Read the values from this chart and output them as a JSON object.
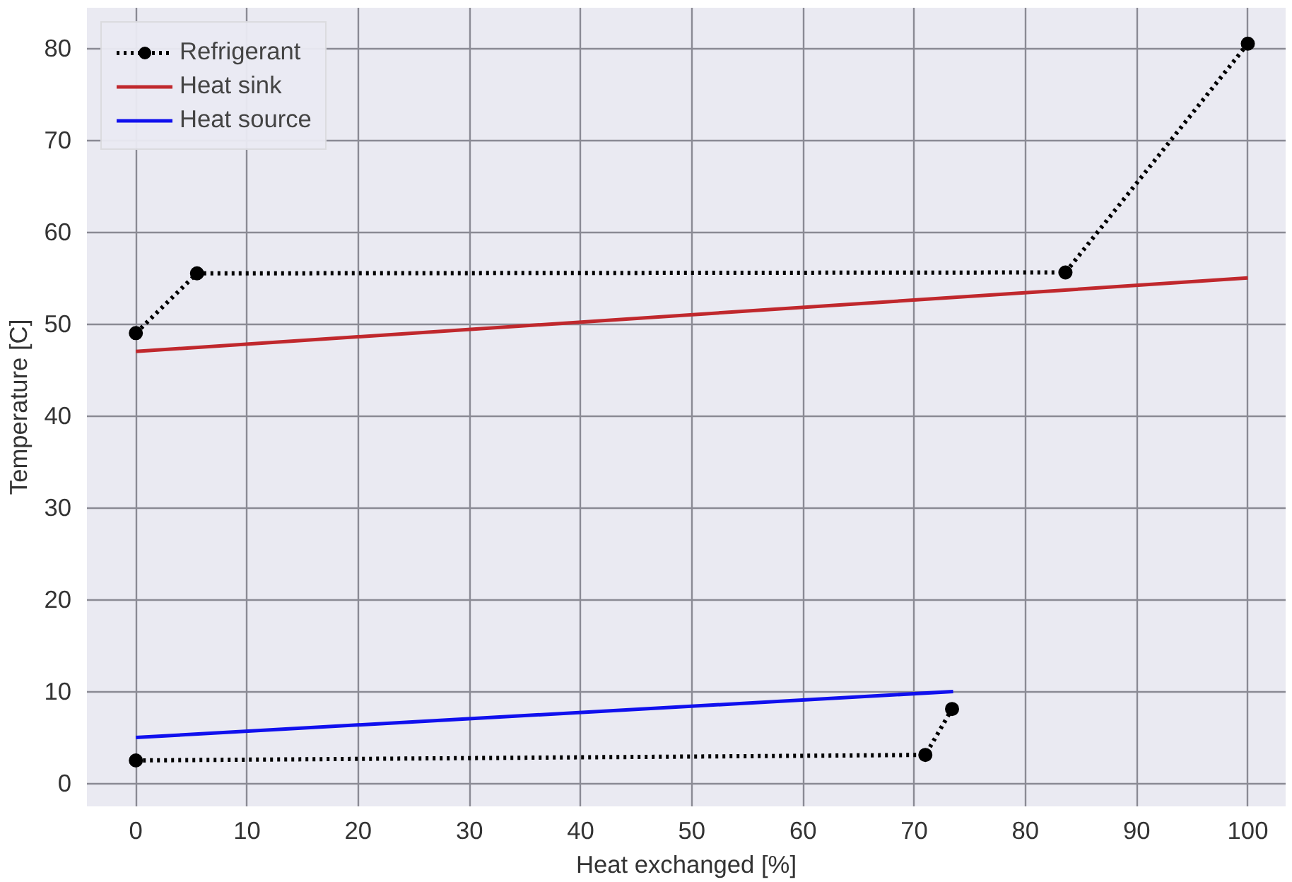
{
  "chart_data": {
    "type": "line",
    "xlabel": "Heat exchanged [%]",
    "ylabel": "Temperature [C]",
    "xlim": [
      -4.4,
      103.4
    ],
    "ylim": [
      -2.5,
      84.4
    ],
    "xticks": [
      0,
      10,
      20,
      30,
      40,
      50,
      60,
      70,
      80,
      90,
      100
    ],
    "yticks": [
      0,
      10,
      20,
      30,
      40,
      50,
      60,
      70,
      80
    ],
    "grid": true,
    "legend": "top left",
    "series": [
      {
        "name": "Refrigerant",
        "color": "#000000",
        "line_style": "dotted",
        "marker": "circle",
        "x": [
          0,
          5.5,
          83.6,
          100
        ],
        "values": [
          49,
          55.5,
          55.6,
          80.5
        ]
      },
      {
        "color": "#000000",
        "line_style": "dotted",
        "marker": "circle",
        "x": [
          0,
          71,
          73.4
        ],
        "values": [
          2.5,
          3.1,
          8.1
        ]
      },
      {
        "name": "Heat sink",
        "color": "#c0282d",
        "line_style": "solid",
        "marker": "none",
        "x": [
          0,
          100
        ],
        "values": [
          47,
          55
        ]
      },
      {
        "name": "Heat source",
        "color": "#1010ee",
        "line_style": "solid",
        "marker": "none",
        "x": [
          0,
          73.5
        ],
        "values": [
          5,
          10
        ]
      }
    ]
  }
}
